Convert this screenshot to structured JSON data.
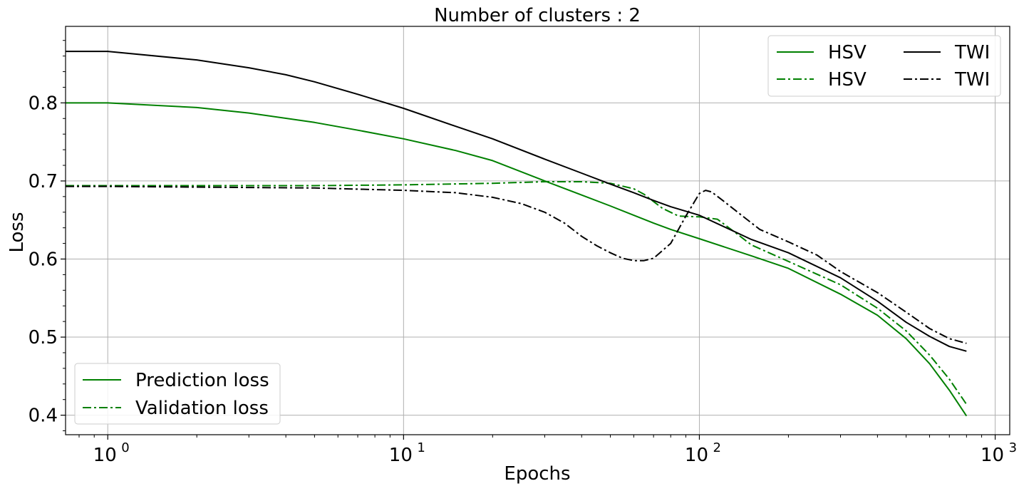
{
  "chart_data": {
    "type": "line",
    "title": "Number of clusters : 2",
    "xlabel": "Epochs",
    "ylabel": "Loss",
    "xscale": "log",
    "xlim": [
      0.72,
      1120
    ],
    "ylim": [
      0.375,
      0.898
    ],
    "grid": true,
    "x_ticks": [
      {
        "value": 1,
        "base": "10",
        "exp": "0"
      },
      {
        "value": 10,
        "base": "10",
        "exp": "1"
      },
      {
        "value": 100,
        "base": "10",
        "exp": "2"
      },
      {
        "value": 1000,
        "base": "10",
        "exp": "3"
      }
    ],
    "y_ticks": [
      {
        "value": 0.4,
        "label": "0.4"
      },
      {
        "value": 0.5,
        "label": "0.5"
      },
      {
        "value": 0.6,
        "label": "0.6"
      },
      {
        "value": 0.7,
        "label": "0.7"
      },
      {
        "value": 0.8,
        "label": "0.8"
      }
    ],
    "series": [
      {
        "name": "HSV",
        "color": "#008000",
        "style": "solid",
        "points": [
          [
            0.72,
            0.8
          ],
          [
            1,
            0.8
          ],
          [
            2,
            0.794
          ],
          [
            3,
            0.787
          ],
          [
            5,
            0.775
          ],
          [
            7,
            0.765
          ],
          [
            10,
            0.754
          ],
          [
            15,
            0.739
          ],
          [
            20,
            0.726
          ],
          [
            30,
            0.7
          ],
          [
            40,
            0.682
          ],
          [
            50,
            0.668
          ],
          [
            60,
            0.656
          ],
          [
            70,
            0.646
          ],
          [
            80,
            0.638
          ],
          [
            100,
            0.626
          ],
          [
            150,
            0.604
          ],
          [
            200,
            0.588
          ],
          [
            300,
            0.555
          ],
          [
            400,
            0.528
          ],
          [
            500,
            0.498
          ],
          [
            600,
            0.466
          ],
          [
            700,
            0.432
          ],
          [
            800,
            0.399
          ]
        ]
      },
      {
        "name": "HSV",
        "color": "#008000",
        "style": "dashdot",
        "points": [
          [
            0.72,
            0.694
          ],
          [
            1,
            0.694
          ],
          [
            5,
            0.694
          ],
          [
            10,
            0.695
          ],
          [
            20,
            0.697
          ],
          [
            30,
            0.699
          ],
          [
            40,
            0.699
          ],
          [
            50,
            0.697
          ],
          [
            60,
            0.69
          ],
          [
            65,
            0.683
          ],
          [
            75,
            0.665
          ],
          [
            85,
            0.655
          ],
          [
            100,
            0.654
          ],
          [
            115,
            0.651
          ],
          [
            130,
            0.636
          ],
          [
            150,
            0.618
          ],
          [
            200,
            0.597
          ],
          [
            300,
            0.567
          ],
          [
            400,
            0.537
          ],
          [
            500,
            0.508
          ],
          [
            600,
            0.477
          ],
          [
            700,
            0.446
          ],
          [
            800,
            0.414
          ]
        ]
      },
      {
        "name": "TWI",
        "color": "#000000",
        "style": "solid",
        "points": [
          [
            0.72,
            0.866
          ],
          [
            1,
            0.866
          ],
          [
            2,
            0.855
          ],
          [
            3,
            0.845
          ],
          [
            4,
            0.836
          ],
          [
            5,
            0.827
          ],
          [
            7,
            0.811
          ],
          [
            10,
            0.793
          ],
          [
            15,
            0.77
          ],
          [
            20,
            0.754
          ],
          [
            30,
            0.728
          ],
          [
            40,
            0.71
          ],
          [
            50,
            0.696
          ],
          [
            60,
            0.685
          ],
          [
            70,
            0.675
          ],
          [
            80,
            0.667
          ],
          [
            100,
            0.656
          ],
          [
            150,
            0.625
          ],
          [
            200,
            0.608
          ],
          [
            300,
            0.576
          ],
          [
            400,
            0.546
          ],
          [
            500,
            0.519
          ],
          [
            600,
            0.501
          ],
          [
            700,
            0.488
          ],
          [
            800,
            0.482
          ]
        ]
      },
      {
        "name": "TWI",
        "color": "#000000",
        "style": "dashdot",
        "points": [
          [
            0.72,
            0.693
          ],
          [
            1,
            0.693
          ],
          [
            5,
            0.691
          ],
          [
            10,
            0.688
          ],
          [
            15,
            0.685
          ],
          [
            20,
            0.679
          ],
          [
            25,
            0.671
          ],
          [
            30,
            0.66
          ],
          [
            35,
            0.646
          ],
          [
            40,
            0.629
          ],
          [
            45,
            0.617
          ],
          [
            50,
            0.608
          ],
          [
            55,
            0.601
          ],
          [
            60,
            0.598
          ],
          [
            65,
            0.598
          ],
          [
            70,
            0.601
          ],
          [
            80,
            0.62
          ],
          [
            90,
            0.655
          ],
          [
            100,
            0.684
          ],
          [
            105,
            0.688
          ],
          [
            110,
            0.686
          ],
          [
            120,
            0.675
          ],
          [
            140,
            0.655
          ],
          [
            160,
            0.638
          ],
          [
            200,
            0.622
          ],
          [
            250,
            0.605
          ],
          [
            300,
            0.584
          ],
          [
            400,
            0.557
          ],
          [
            500,
            0.532
          ],
          [
            600,
            0.511
          ],
          [
            700,
            0.498
          ],
          [
            800,
            0.492
          ]
        ]
      }
    ],
    "legend_series": {
      "position": "top-right",
      "columns": 2,
      "entries": [
        {
          "label": "HSV",
          "color": "#008000",
          "style": "solid"
        },
        {
          "label": "TWI",
          "color": "#000000",
          "style": "solid"
        },
        {
          "label": "HSV",
          "color": "#008000",
          "style": "dashdot"
        },
        {
          "label": "TWI",
          "color": "#000000",
          "style": "dashdot"
        }
      ]
    },
    "legend_style": {
      "position": "bottom-left",
      "entries": [
        {
          "label": "Prediction loss",
          "color": "#008000",
          "style": "solid"
        },
        {
          "label": "Validation loss",
          "color": "#008000",
          "style": "dashdot"
        }
      ]
    }
  }
}
